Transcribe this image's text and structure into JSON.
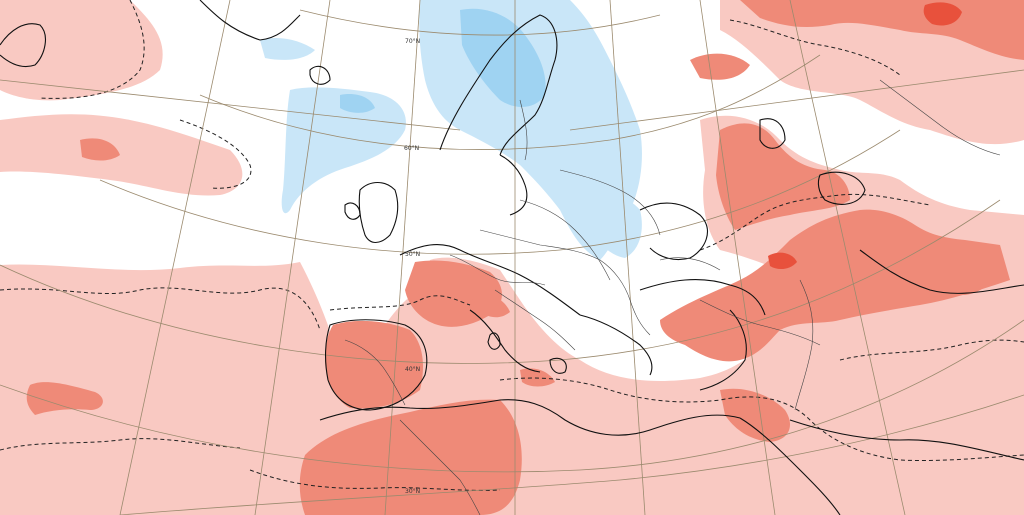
{
  "map": {
    "colors": {
      "background": "#ffffff",
      "warm_light": "#f9c9c2",
      "warm_medium": "#ef8a78",
      "warm_strong": "#e8513c",
      "cold_light": "#c9e6f8",
      "cold_medium": "#9fd3f2",
      "coastline": "#111111",
      "border": "#444444",
      "graticule": "#9b8a6e",
      "contour_dashed": "#222222"
    },
    "latitude_labels": [
      "70°N",
      "60°N",
      "50°N",
      "40°N",
      "30°N"
    ]
  }
}
